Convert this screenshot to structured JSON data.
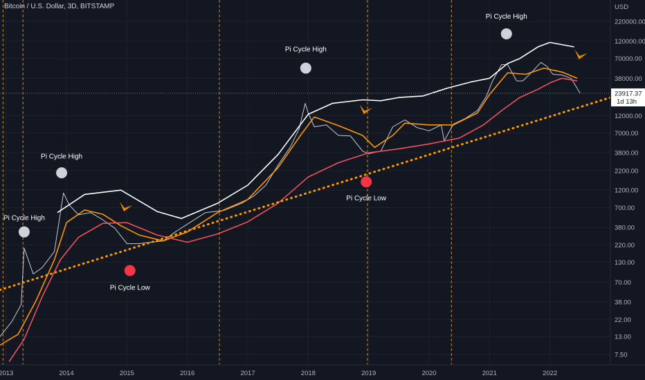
{
  "header": {
    "title": "Bitcoin / U.S. Dollar, 3D, BITSTAMP"
  },
  "chart_data": {
    "type": "line",
    "title": "Bitcoin / U.S. Dollar, 3D, BITSTAMP",
    "y_unit": "USD",
    "y_scale": "log",
    "ylim": [
      5.5,
      300000
    ],
    "xlim": [
      2012.9,
      2023.0
    ],
    "x_ticks": [
      "2013",
      "2014",
      "2015",
      "2016",
      "2017",
      "2018",
      "2019",
      "2020",
      "2021",
      "2022"
    ],
    "y_ticks": [
      "220000.00",
      "120000.00",
      "70000.00",
      "38000.00",
      "23917.37",
      "12000.00",
      "7000.00",
      "3800.00",
      "2200.00",
      "1200.00",
      "700.00",
      "380.00",
      "220.00",
      "130.00",
      "70.00",
      "38.00",
      "22.00",
      "13.00",
      "7.50"
    ],
    "last_price": "23917.37",
    "last_price_countdown": "1d 13h",
    "vertical_markers_x": [
      2012.95,
      2013.28,
      2016.53,
      2018.98,
      2020.37
    ],
    "series": [
      {
        "name": "",
        "color": "#c9ccd4",
        "x": [
          2012.9,
          2013.1,
          2013.25,
          2013.3,
          2013.45,
          2013.6,
          2013.8,
          2013.9,
          2013.95,
          2014.05,
          2014.2,
          2014.4,
          2014.6,
          2014.8,
          2015.0,
          2015.2,
          2015.4,
          2015.6,
          2015.8,
          2016.0,
          2016.3,
          2016.6,
          2016.9,
          2017.1,
          2017.3,
          2017.5,
          2017.7,
          2017.85,
          2017.95,
          2018.0,
          2018.1,
          2018.3,
          2018.5,
          2018.7,
          2018.9,
          2019.0,
          2019.2,
          2019.4,
          2019.6,
          2019.8,
          2020.0,
          2020.2,
          2020.25,
          2020.4,
          2020.6,
          2020.8,
          2020.95,
          2021.05,
          2021.2,
          2021.3,
          2021.45,
          2021.55,
          2021.7,
          2021.85,
          2021.95,
          2022.05,
          2022.2,
          2022.35,
          2022.5
        ],
        "y": [
          13,
          21,
          35,
          200,
          90,
          110,
          180,
          600,
          1100,
          750,
          560,
          600,
          480,
          370,
          230,
          230,
          240,
          250,
          330,
          420,
          600,
          640,
          800,
          1000,
          1400,
          2600,
          4500,
          8000,
          17500,
          13000,
          8500,
          9000,
          6500,
          6400,
          4000,
          3700,
          4000,
          8500,
          10500,
          8300,
          7500,
          9000,
          5500,
          9200,
          11000,
          14000,
          22000,
          35000,
          58000,
          58000,
          35000,
          35000,
          46000,
          62000,
          55000,
          43000,
          42000,
          38000,
          23917
        ]
      },
      {
        "name": "",
        "color": "#ffffff",
        "x": [
          2013.85,
          2014.3,
          2014.9,
          2015.5,
          2015.9,
          2016.5,
          2017.0,
          2017.5,
          2018.0,
          2018.4,
          2018.9,
          2019.2,
          2019.5,
          2019.9,
          2020.3,
          2020.7,
          2021.0,
          2021.3,
          2021.5,
          2021.8,
          2022.0,
          2022.4
        ],
        "y": [
          600,
          1050,
          1200,
          620,
          500,
          800,
          1400,
          3600,
          12500,
          17500,
          19500,
          19000,
          21000,
          22000,
          28000,
          34000,
          38000,
          60000,
          70000,
          100000,
          115000,
          100000
        ]
      },
      {
        "name": "",
        "color": "#ff9800",
        "x": [
          2012.9,
          2013.2,
          2013.5,
          2013.8,
          2014.0,
          2014.3,
          2014.6,
          2014.9,
          2015.2,
          2015.6,
          2016.0,
          2016.5,
          2017.0,
          2017.5,
          2017.9,
          2018.1,
          2018.5,
          2018.9,
          2019.1,
          2019.4,
          2019.6,
          2020.0,
          2020.4,
          2020.8,
          2021.0,
          2021.3,
          2021.6,
          2021.9,
          2022.2,
          2022.45
        ],
        "y": [
          10,
          14,
          40,
          140,
          440,
          650,
          570,
          400,
          300,
          250,
          330,
          600,
          900,
          2400,
          7000,
          11500,
          8800,
          6500,
          4500,
          6500,
          9500,
          9000,
          9000,
          13000,
          23000,
          45000,
          43000,
          52000,
          46000,
          38000
        ]
      },
      {
        "name": "",
        "color": "#f2525a",
        "x": [
          2013.05,
          2013.3,
          2013.6,
          2013.9,
          2014.2,
          2014.6,
          2015.0,
          2015.5,
          2016.0,
          2016.5,
          2017.0,
          2017.5,
          2018.0,
          2018.5,
          2019.0,
          2019.5,
          2020.0,
          2020.5,
          2020.9,
          2021.2,
          2021.5,
          2021.8,
          2022.0,
          2022.2,
          2022.45
        ],
        "y": [
          6,
          12,
          45,
          140,
          280,
          430,
          440,
          300,
          240,
          310,
          450,
          800,
          1800,
          2800,
          3800,
          4300,
          5000,
          6000,
          9000,
          14000,
          21000,
          27000,
          33000,
          38000,
          35000
        ]
      },
      {
        "name": "",
        "color": "#ff9800",
        "dashed": true,
        "x": [
          2012.9,
          2023.0
        ],
        "y": [
          55,
          21000
        ]
      }
    ],
    "annotations": [
      {
        "label": "Pi Cycle High",
        "x": 2013.3,
        "y": 330,
        "text_y": 520,
        "marker": "circle",
        "color": "#cfd2d8"
      },
      {
        "label": "Pi Cycle High",
        "x": 2013.92,
        "y": 2050,
        "text_y": 3450,
        "marker": "circle",
        "color": "#cfd2d8"
      },
      {
        "label": "Pi Cycle High",
        "x": 2017.96,
        "y": 52000,
        "text_y": 95000,
        "marker": "circle",
        "color": "#cfd2d8"
      },
      {
        "label": "Pi Cycle High",
        "x": 2021.28,
        "y": 150000,
        "text_y": 260000,
        "marker": "circle",
        "color": "#cfd2d8"
      },
      {
        "label": "Pi Cycle Low",
        "x": 2015.05,
        "y": 100,
        "text_y": 60,
        "marker": "circle",
        "color": "#f23645"
      },
      {
        "label": "Pi Cycle Low",
        "x": 2018.96,
        "y": 1550,
        "text_y": 950,
        "marker": "circle",
        "color": "#f23645"
      },
      {
        "label": "",
        "x": 2014.95,
        "y": 620,
        "marker": "arrow",
        "color": "#e8890c"
      },
      {
        "label": "",
        "x": 2018.92,
        "y": 12500,
        "marker": "arrow",
        "color": "#e8890c"
      },
      {
        "label": "",
        "x": 2022.48,
        "y": 68000,
        "marker": "arrow",
        "color": "#e8890c"
      }
    ]
  }
}
